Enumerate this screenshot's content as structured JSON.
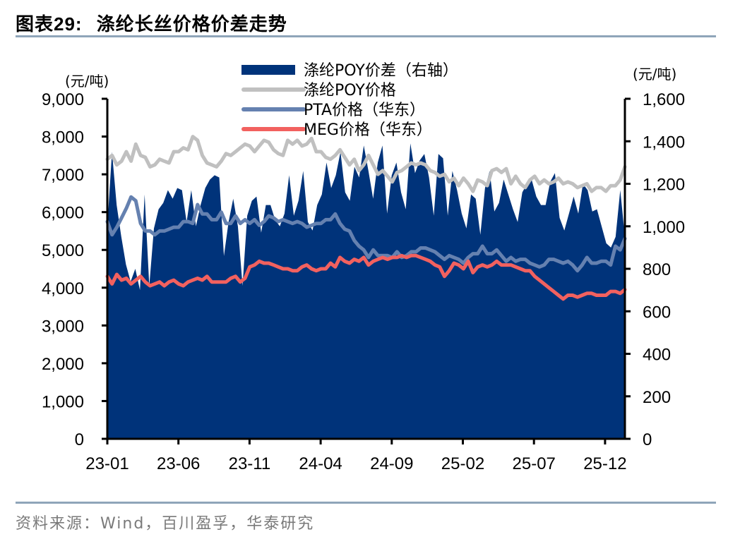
{
  "figure": {
    "title_prefix": "图表",
    "title_number": "29:",
    "title_text": "涤纶长丝价格价差走势",
    "source": "资料来源：Wind，百川盈孚，华泰研究"
  },
  "colors": {
    "spread": "#00337a",
    "poy": "#c0c0c0",
    "pta": "#6581b0",
    "meg": "#f2615f",
    "rule": "#8fa5b9"
  },
  "chart_data": {
    "type": "line+area",
    "title": "涤纶长丝价格价差走势",
    "xlabel": "",
    "ylabel_left": "(元/吨)",
    "ylabel_right": "(元/吨)",
    "ylim_left": [
      0,
      9000
    ],
    "ylim_right": [
      0,
      1600
    ],
    "yticks_left": [
      "0",
      "1,000",
      "2,000",
      "3,000",
      "4,000",
      "5,000",
      "6,000",
      "7,000",
      "8,000",
      "9,000"
    ],
    "yticks_right": [
      "0",
      "200",
      "400",
      "600",
      "800",
      "1,000",
      "1,200",
      "1,400",
      "1,600"
    ],
    "xticks": [
      "23-01",
      "23-06",
      "23-11",
      "24-04",
      "24-09",
      "25-02",
      "25-07",
      "25-12"
    ],
    "legend_position": "top-center",
    "grid": false,
    "x_step": "half-month, starting 23-01, ending ~26-01",
    "series": [
      {
        "name": "涤纶POY价差（右轴）",
        "axis": "right",
        "style": "area",
        "values": [
          1000,
          1350,
          1100,
          950,
          820,
          740,
          800,
          700,
          1150,
          720,
          990,
          1080,
          1110,
          1170,
          1130,
          1180,
          1170,
          1020,
          1170,
          1000,
          1100,
          1180,
          1220,
          1240,
          1230,
          860,
          1020,
          1130,
          1000,
          720,
          1050,
          1120,
          1140,
          970,
          1100,
          1100,
          1030,
          1000,
          1060,
          1240,
          1050,
          1120,
          1260,
          1020,
          980,
          1100,
          1150,
          1300,
          1180,
          1240,
          1350,
          1160,
          1120,
          1280,
          1230,
          1380,
          1260,
          1130,
          1300,
          1380,
          1060,
          1240,
          1300,
          1160,
          1080,
          1390,
          1250,
          1310,
          1340,
          1230,
          1050,
          1340,
          1320,
          1050,
          1260,
          1170,
          1060,
          990,
          1150,
          1130,
          960,
          1180,
          1260,
          1070,
          1110,
          1220,
          1150,
          1080,
          1020,
          1160,
          1200,
          1220,
          1140,
          1100,
          1100,
          1210,
          1250,
          1040,
          980,
          1060,
          1140,
          1060,
          1200,
          1170,
          1070,
          1080,
          1000,
          920,
          900,
          950,
          1170,
          950
        ]
      },
      {
        "name": "涤纶POY价格",
        "axis": "left",
        "style": "line",
        "values": [
          7400,
          7500,
          7250,
          7350,
          7600,
          7350,
          7800,
          7500,
          7450,
          7200,
          7250,
          7400,
          7350,
          7300,
          7600,
          7600,
          7700,
          7650,
          8000,
          7900,
          7500,
          7300,
          7250,
          7200,
          7350,
          7550,
          7500,
          7600,
          7700,
          7800,
          7750,
          7600,
          7750,
          7900,
          7850,
          7650,
          7550,
          7500,
          7900,
          7800,
          7900,
          7750,
          7800,
          7950,
          7600,
          7600,
          7450,
          7400,
          7500,
          7650,
          7450,
          7250,
          7400,
          7100,
          7250,
          7500,
          7250,
          7000,
          7100,
          6950,
          6800,
          7050,
          7100,
          7200,
          7300,
          7250,
          7300,
          7250,
          7100,
          7050,
          6950,
          7000,
          6800,
          6900,
          6700,
          6900,
          6750,
          6550,
          6850,
          6800,
          6700,
          7100,
          7150,
          7050,
          7150,
          6750,
          6950,
          6750,
          6650,
          6850,
          6950,
          6750,
          6850,
          6750,
          6800,
          6900,
          6750,
          6800,
          6750,
          6650,
          6700,
          6750,
          6550,
          6650,
          6650,
          6550,
          6700,
          6700,
          6850,
          7200
        ]
      },
      {
        "name": "PTA价格（华东）",
        "axis": "left",
        "style": "line",
        "values": [
          5750,
          5400,
          5600,
          5850,
          6100,
          6400,
          6300,
          5700,
          5500,
          5500,
          5400,
          5500,
          5500,
          5550,
          5600,
          5600,
          5750,
          5750,
          5700,
          6200,
          5950,
          5950,
          5800,
          5800,
          6000,
          5700,
          5700,
          5900,
          5700,
          5800,
          5700,
          5800,
          5650,
          5750,
          5900,
          5850,
          5750,
          5800,
          5750,
          5700,
          5750,
          5700,
          5600,
          5650,
          5700,
          5700,
          5800,
          5800,
          5950,
          5700,
          5550,
          5500,
          5250,
          5100,
          5000,
          4800,
          5000,
          4850,
          4850,
          4850,
          4800,
          4950,
          4800,
          4850,
          4950,
          4950,
          5050,
          5050,
          5000,
          4950,
          4850,
          4750,
          4850,
          4800,
          4750,
          4650,
          4800,
          4900,
          4900,
          5100,
          4900,
          4900,
          5000,
          4850,
          4700,
          4800,
          4700,
          4750,
          4750,
          4650,
          4600,
          4550,
          4600,
          4750,
          4750,
          4700,
          4650,
          4700,
          4600,
          4450,
          4600,
          4800,
          4650,
          4650,
          4700,
          4700,
          4600,
          5100,
          5000,
          5300
        ]
      },
      {
        "name": "MEG价格（华东）",
        "axis": "left",
        "style": "line",
        "values": [
          4300,
          4100,
          4350,
          4200,
          4250,
          4100,
          4200,
          4300,
          4150,
          4050,
          4100,
          4150,
          4050,
          4150,
          4200,
          4100,
          4050,
          4150,
          4200,
          4250,
          4200,
          4300,
          4150,
          4150,
          4150,
          4150,
          4250,
          4300,
          4150,
          4250,
          4550,
          4600,
          4700,
          4650,
          4650,
          4600,
          4550,
          4500,
          4500,
          4450,
          4450,
          4550,
          4600,
          4500,
          4450,
          4500,
          4500,
          4650,
          4550,
          4800,
          4700,
          4650,
          4750,
          4700,
          4800,
          4600,
          4700,
          4750,
          4800,
          4750,
          4800,
          4800,
          4850,
          4800,
          4850,
          4850,
          4800,
          4750,
          4700,
          4600,
          4550,
          4300,
          4450,
          4650,
          4600,
          4500,
          4700,
          4400,
          4550,
          4600,
          4550,
          4600,
          4700,
          4600,
          4600,
          4600,
          4550,
          4500,
          4450,
          4450,
          4300,
          4200,
          4100,
          4000,
          3900,
          3800,
          3700,
          3800,
          3800,
          3750,
          3800,
          3850,
          3850,
          3800,
          3800,
          3800,
          3900,
          3900,
          3850,
          3950
        ]
      }
    ]
  }
}
